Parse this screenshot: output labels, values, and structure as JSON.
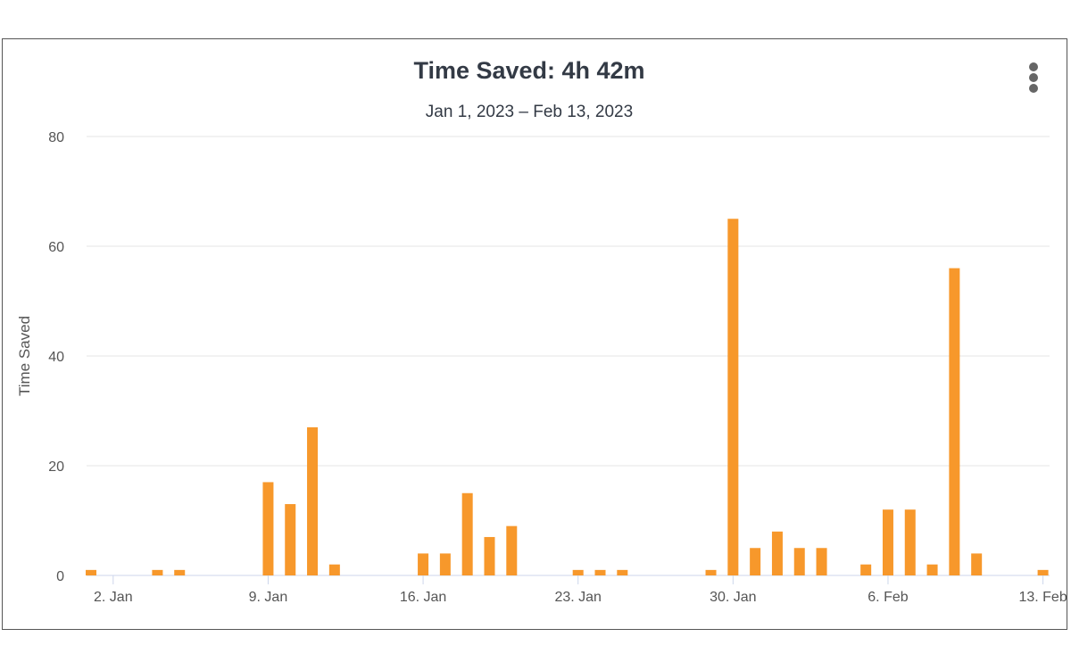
{
  "chart_data": {
    "type": "bar",
    "title": "Time Saved: 4h 42m",
    "subtitle": "Jan 1, 2023 – Feb 13, 2023",
    "ylabel": "Time Saved",
    "xlabel": "",
    "ylim": [
      0,
      80
    ],
    "yticks": [
      0,
      20,
      40,
      60,
      80
    ],
    "x_start": "2023-01-01",
    "xticks": [
      {
        "label": "2. Jan",
        "day": 1
      },
      {
        "label": "9. Jan",
        "day": 8
      },
      {
        "label": "16. Jan",
        "day": 15
      },
      {
        "label": "23. Jan",
        "day": 22
      },
      {
        "label": "30. Jan",
        "day": 29
      },
      {
        "label": "6. Feb",
        "day": 36
      },
      {
        "label": "13. Feb",
        "day": 43
      }
    ],
    "values": [
      1,
      0,
      0,
      1,
      1,
      0,
      0,
      0,
      17,
      13,
      27,
      2,
      0,
      0,
      0,
      4,
      4,
      15,
      7,
      9,
      0,
      0,
      1,
      1,
      1,
      0,
      0,
      0,
      1,
      65,
      5,
      8,
      5,
      5,
      0,
      2,
      12,
      12,
      2,
      56,
      4,
      0,
      0,
      1
    ],
    "bar_color": "#f7982b",
    "grid": true,
    "legend": "none"
  },
  "menu": {
    "icon": "kebab-menu-icon"
  }
}
